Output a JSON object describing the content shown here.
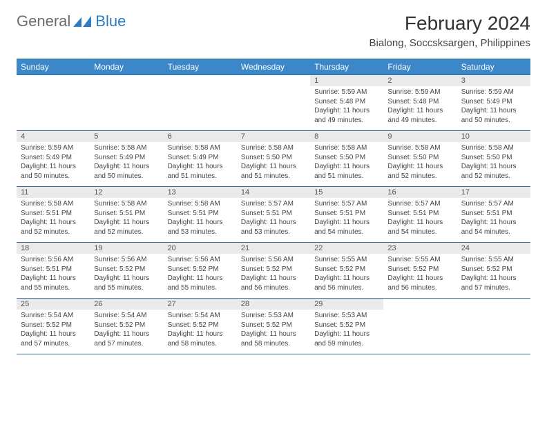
{
  "logo": {
    "general": "General",
    "blue": "Blue"
  },
  "title": "February 2024",
  "location": "Bialong, Soccsksargen, Philippines",
  "colors": {
    "header_bg": "#3b87c8",
    "header_text": "#ffffff",
    "daynum_bg": "#eaeaea",
    "row_border": "#3b6a9a",
    "logo_blue": "#2d7cc4"
  },
  "day_headers": [
    "Sunday",
    "Monday",
    "Tuesday",
    "Wednesday",
    "Thursday",
    "Friday",
    "Saturday"
  ],
  "weeks": [
    {
      "nums": [
        "",
        "",
        "",
        "",
        "1",
        "2",
        "3"
      ],
      "cells": [
        null,
        null,
        null,
        null,
        {
          "sunrise": "5:59 AM",
          "sunset": "5:48 PM",
          "daylight": "11 hours and 49 minutes."
        },
        {
          "sunrise": "5:59 AM",
          "sunset": "5:48 PM",
          "daylight": "11 hours and 49 minutes."
        },
        {
          "sunrise": "5:59 AM",
          "sunset": "5:49 PM",
          "daylight": "11 hours and 50 minutes."
        }
      ]
    },
    {
      "nums": [
        "4",
        "5",
        "6",
        "7",
        "8",
        "9",
        "10"
      ],
      "cells": [
        {
          "sunrise": "5:59 AM",
          "sunset": "5:49 PM",
          "daylight": "11 hours and 50 minutes."
        },
        {
          "sunrise": "5:58 AM",
          "sunset": "5:49 PM",
          "daylight": "11 hours and 50 minutes."
        },
        {
          "sunrise": "5:58 AM",
          "sunset": "5:49 PM",
          "daylight": "11 hours and 51 minutes."
        },
        {
          "sunrise": "5:58 AM",
          "sunset": "5:50 PM",
          "daylight": "11 hours and 51 minutes."
        },
        {
          "sunrise": "5:58 AM",
          "sunset": "5:50 PM",
          "daylight": "11 hours and 51 minutes."
        },
        {
          "sunrise": "5:58 AM",
          "sunset": "5:50 PM",
          "daylight": "11 hours and 52 minutes."
        },
        {
          "sunrise": "5:58 AM",
          "sunset": "5:50 PM",
          "daylight": "11 hours and 52 minutes."
        }
      ]
    },
    {
      "nums": [
        "11",
        "12",
        "13",
        "14",
        "15",
        "16",
        "17"
      ],
      "cells": [
        {
          "sunrise": "5:58 AM",
          "sunset": "5:51 PM",
          "daylight": "11 hours and 52 minutes."
        },
        {
          "sunrise": "5:58 AM",
          "sunset": "5:51 PM",
          "daylight": "11 hours and 52 minutes."
        },
        {
          "sunrise": "5:58 AM",
          "sunset": "5:51 PM",
          "daylight": "11 hours and 53 minutes."
        },
        {
          "sunrise": "5:57 AM",
          "sunset": "5:51 PM",
          "daylight": "11 hours and 53 minutes."
        },
        {
          "sunrise": "5:57 AM",
          "sunset": "5:51 PM",
          "daylight": "11 hours and 54 minutes."
        },
        {
          "sunrise": "5:57 AM",
          "sunset": "5:51 PM",
          "daylight": "11 hours and 54 minutes."
        },
        {
          "sunrise": "5:57 AM",
          "sunset": "5:51 PM",
          "daylight": "11 hours and 54 minutes."
        }
      ]
    },
    {
      "nums": [
        "18",
        "19",
        "20",
        "21",
        "22",
        "23",
        "24"
      ],
      "cells": [
        {
          "sunrise": "5:56 AM",
          "sunset": "5:51 PM",
          "daylight": "11 hours and 55 minutes."
        },
        {
          "sunrise": "5:56 AM",
          "sunset": "5:52 PM",
          "daylight": "11 hours and 55 minutes."
        },
        {
          "sunrise": "5:56 AM",
          "sunset": "5:52 PM",
          "daylight": "11 hours and 55 minutes."
        },
        {
          "sunrise": "5:56 AM",
          "sunset": "5:52 PM",
          "daylight": "11 hours and 56 minutes."
        },
        {
          "sunrise": "5:55 AM",
          "sunset": "5:52 PM",
          "daylight": "11 hours and 56 minutes."
        },
        {
          "sunrise": "5:55 AM",
          "sunset": "5:52 PM",
          "daylight": "11 hours and 56 minutes."
        },
        {
          "sunrise": "5:55 AM",
          "sunset": "5:52 PM",
          "daylight": "11 hours and 57 minutes."
        }
      ]
    },
    {
      "nums": [
        "25",
        "26",
        "27",
        "28",
        "29",
        "",
        ""
      ],
      "cells": [
        {
          "sunrise": "5:54 AM",
          "sunset": "5:52 PM",
          "daylight": "11 hours and 57 minutes."
        },
        {
          "sunrise": "5:54 AM",
          "sunset": "5:52 PM",
          "daylight": "11 hours and 57 minutes."
        },
        {
          "sunrise": "5:54 AM",
          "sunset": "5:52 PM",
          "daylight": "11 hours and 58 minutes."
        },
        {
          "sunrise": "5:53 AM",
          "sunset": "5:52 PM",
          "daylight": "11 hours and 58 minutes."
        },
        {
          "sunrise": "5:53 AM",
          "sunset": "5:52 PM",
          "daylight": "11 hours and 59 minutes."
        },
        null,
        null
      ]
    }
  ],
  "labels": {
    "sunrise": "Sunrise:",
    "sunset": "Sunset:",
    "daylight": "Daylight:"
  }
}
